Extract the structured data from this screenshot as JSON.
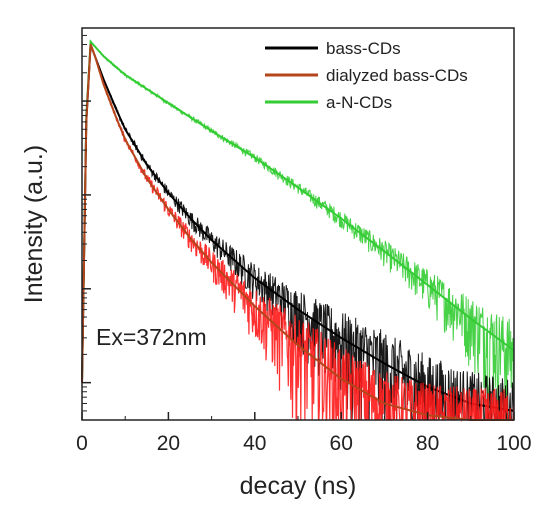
{
  "chart_data": {
    "type": "line",
    "xlabel": "decay (ns)",
    "ylabel": "Intensity (a.u.)",
    "xlim": [
      0,
      100
    ],
    "xticks": [
      "0",
      "20",
      "40",
      "60",
      "80",
      "100"
    ],
    "y_scale": "log",
    "ylim": [
      0.4,
      6000
    ],
    "y_tick_labels_shown": false,
    "grid": false,
    "legend_position": "top-right",
    "annotation": "Ex=372nm",
    "series": [
      {
        "name": "bass-CDs",
        "color": "#000000",
        "x": [
          0,
          1,
          2,
          3,
          5,
          8,
          10,
          15,
          20,
          25,
          30,
          40,
          50,
          60,
          70,
          80,
          90,
          100
        ],
        "y": [
          1,
          600,
          4000,
          3000,
          1700,
          800,
          500,
          210,
          105,
          57,
          33,
          13,
          6,
          3,
          1.6,
          0.9,
          0.6,
          0.5
        ]
      },
      {
        "name": "dialyzed bass-CDs",
        "color": "#b5451b",
        "x": [
          0,
          1,
          2,
          3,
          5,
          8,
          10,
          15,
          20,
          25,
          30,
          40,
          50,
          60,
          70,
          80,
          90,
          100
        ],
        "y": [
          1,
          600,
          4000,
          3000,
          1500,
          650,
          390,
          150,
          70,
          35,
          19,
          6.5,
          2.5,
          1.1,
          0.6,
          0.45,
          0.4,
          0.4
        ]
      },
      {
        "name": "a-N-CDs",
        "color": "#33cc33",
        "x": [
          0,
          1,
          2,
          3,
          5,
          10,
          20,
          30,
          40,
          50,
          60,
          70,
          80,
          90,
          100
        ],
        "y": [
          1,
          700,
          4300,
          3800,
          3000,
          1900,
          950,
          480,
          250,
          120,
          56,
          25,
          11,
          4.8,
          2.2
        ]
      }
    ]
  }
}
